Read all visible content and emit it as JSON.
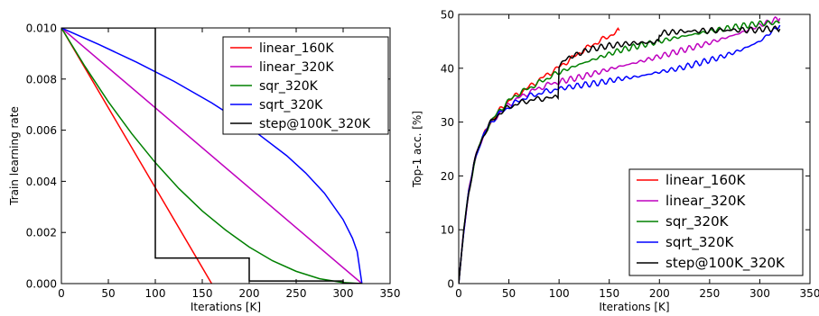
{
  "chart_data": [
    {
      "type": "line",
      "title": "",
      "xlabel": "Iterations [K]",
      "ylabel": "Train learning rate",
      "xlim": [
        0,
        350
      ],
      "ylim": [
        0.0,
        0.01
      ],
      "xticks": [
        "0",
        "50",
        "100",
        "150",
        "200",
        "250",
        "300",
        "350"
      ],
      "yticks": [
        "0.000",
        "0.002",
        "0.004",
        "0.006",
        "0.008",
        "0.010"
      ],
      "grid": false,
      "legend_position": "top-right",
      "series": [
        {
          "name": "linear_160K",
          "color": "#ff0000",
          "x": [
            0,
            160
          ],
          "y": [
            0.01,
            0.0
          ]
        },
        {
          "name": "linear_320K",
          "color": "#bf00bf",
          "x": [
            0,
            320
          ],
          "y": [
            0.01,
            0.0
          ]
        },
        {
          "name": "sqr_320K",
          "color": "#008000",
          "x": [
            0,
            25,
            50,
            75,
            100,
            125,
            150,
            175,
            200,
            225,
            250,
            275,
            300,
            320
          ],
          "y": [
            0.01,
            0.0085,
            0.00711,
            0.00586,
            0.00473,
            0.00372,
            0.00284,
            0.00209,
            0.00143,
            0.00089,
            0.00048,
            0.00019,
            4e-05,
            0.0
          ]
        },
        {
          "name": "sqrt_320K",
          "color": "#0000ff",
          "x": [
            0,
            40,
            80,
            120,
            160,
            200,
            240,
            260,
            280,
            300,
            310,
            315,
            320
          ],
          "y": [
            0.01,
            0.00935,
            0.00866,
            0.00791,
            0.00707,
            0.00612,
            0.005,
            0.00433,
            0.00354,
            0.0025,
            0.00177,
            0.00125,
            0.0
          ]
        },
        {
          "name": "step@100K_320K",
          "color": "#000000",
          "x": [
            0,
            100,
            100,
            200,
            200,
            300,
            300,
            320
          ],
          "y": [
            0.01,
            0.01,
            0.001,
            0.001,
            0.0001,
            0.0001,
            1e-05,
            1e-05
          ]
        }
      ]
    },
    {
      "type": "line",
      "title": "",
      "xlabel": "Iterations [K]",
      "ylabel": "Top-1 acc. [%]",
      "xlim": [
        0,
        350
      ],
      "ylim": [
        0,
        50
      ],
      "xticks": [
        "0",
        "50",
        "100",
        "150",
        "200",
        "250",
        "300",
        "350"
      ],
      "yticks": [
        "0",
        "10",
        "20",
        "30",
        "40",
        "50"
      ],
      "grid": false,
      "legend_position": "bottom-right",
      "series": [
        {
          "name": "linear_160K",
          "color": "#ff0000",
          "x": [
            0,
            2,
            5,
            10,
            15,
            20,
            25,
            30,
            40,
            50,
            60,
            70,
            80,
            90,
            100,
            110,
            120,
            130,
            140,
            150,
            160
          ],
          "y": [
            0,
            4,
            10,
            17,
            22,
            25.5,
            27.5,
            29.5,
            32,
            34,
            35.3,
            36.5,
            37.8,
            39,
            40.2,
            41.5,
            42.8,
            44,
            45,
            46,
            47
          ]
        },
        {
          "name": "linear_320K",
          "color": "#bf00bf",
          "x": [
            0,
            2,
            5,
            10,
            15,
            20,
            25,
            30,
            40,
            50,
            60,
            70,
            80,
            90,
            100,
            120,
            140,
            160,
            180,
            200,
            220,
            240,
            260,
            280,
            300,
            320
          ],
          "y": [
            0,
            4,
            10,
            17,
            22,
            25.5,
            27.5,
            29.5,
            31.5,
            33.3,
            34.5,
            35.5,
            36.3,
            37,
            37.5,
            38.3,
            39.3,
            40.3,
            41.2,
            42.2,
            43.2,
            44.2,
            45.3,
            46.5,
            48,
            49.3
          ]
        },
        {
          "name": "sqr_320K",
          "color": "#008000",
          "x": [
            0,
            2,
            5,
            10,
            15,
            20,
            25,
            30,
            40,
            50,
            60,
            70,
            80,
            90,
            100,
            120,
            140,
            160,
            180,
            200,
            220,
            240,
            260,
            280,
            300,
            320
          ],
          "y": [
            0,
            4,
            10,
            17,
            22,
            25.5,
            27.5,
            29.5,
            32,
            34,
            35.3,
            36.3,
            37.3,
            38.3,
            39.2,
            40.7,
            42,
            43.3,
            44.2,
            45,
            45.8,
            46.5,
            47.2,
            47.8,
            48.3,
            48.5
          ]
        },
        {
          "name": "sqrt_320K",
          "color": "#0000ff",
          "x": [
            0,
            2,
            5,
            10,
            15,
            20,
            25,
            30,
            40,
            50,
            60,
            70,
            80,
            90,
            100,
            120,
            140,
            160,
            180,
            200,
            220,
            240,
            260,
            280,
            300,
            320
          ],
          "y": [
            0,
            4,
            10,
            17,
            22,
            25.5,
            27.5,
            29.5,
            31.5,
            32.8,
            34,
            34.8,
            35.3,
            35.8,
            36.2,
            36.8,
            37.3,
            38,
            38.5,
            39.3,
            40,
            41,
            42,
            43.3,
            45,
            48
          ]
        },
        {
          "name": "step@100K_320K",
          "color": "#000000",
          "x": [
            0,
            2,
            5,
            10,
            15,
            20,
            25,
            30,
            40,
            50,
            60,
            70,
            80,
            90,
            99,
            100,
            110,
            130,
            150,
            170,
            190,
            199,
            200,
            220,
            250,
            280,
            299,
            300,
            320
          ],
          "y": [
            0,
            4,
            10,
            17,
            22,
            25.5,
            27.5,
            29.5,
            31.5,
            32.8,
            33.5,
            34,
            34.3,
            34.5,
            34.8,
            40.5,
            42,
            43.5,
            44.2,
            44.6,
            44.8,
            44.9,
            46.5,
            46.8,
            47,
            47.1,
            47.1,
            47.3,
            47.3
          ]
        }
      ]
    }
  ]
}
